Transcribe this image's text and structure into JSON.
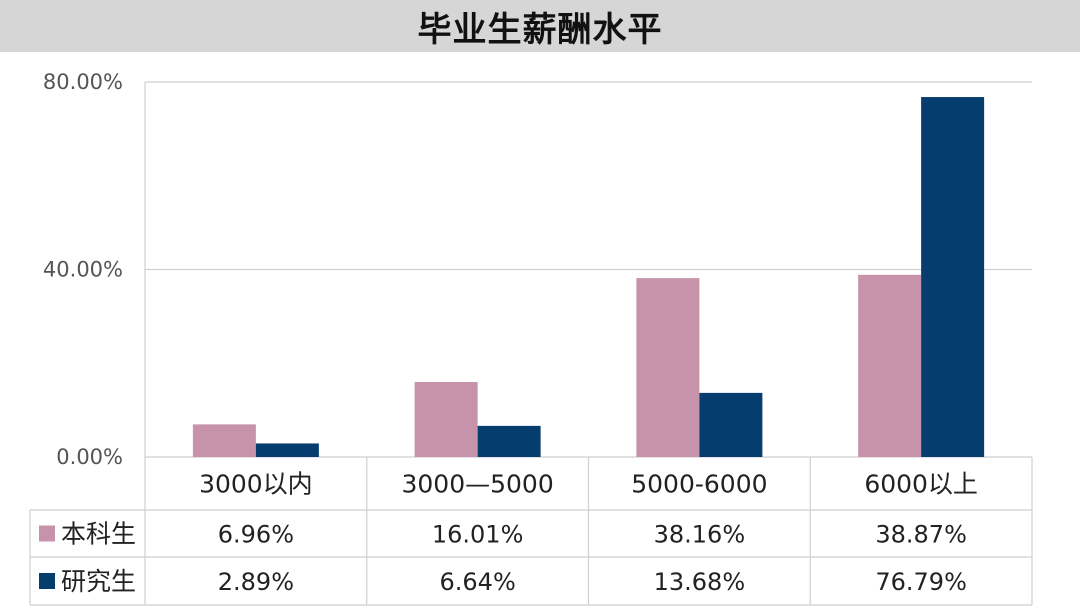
{
  "title": "毕业生薪酬水平",
  "chart_data": {
    "type": "bar",
    "title": "毕业生薪酬水平",
    "categories": [
      "3000以内",
      "3000—5000",
      "5000-6000",
      "6000以上"
    ],
    "series": [
      {
        "name": "本科生",
        "values": [
          6.96,
          16.01,
          38.16,
          38.87
        ],
        "labels": [
          "6.96%",
          "16.01%",
          "38.16%",
          "38.87%"
        ],
        "color": "#c793aa"
      },
      {
        "name": "研究生",
        "values": [
          2.89,
          6.64,
          13.68,
          76.79
        ],
        "labels": [
          "2.89%",
          "6.64%",
          "13.68%",
          "76.79%"
        ],
        "color": "#053e6e"
      }
    ],
    "ylim": [
      0,
      80
    ],
    "yticks": [
      {
        "value": 0,
        "label": "0.00%"
      },
      {
        "value": 40,
        "label": "40.00%"
      },
      {
        "value": 80,
        "label": "80.00%"
      }
    ],
    "grid": true,
    "legend": "data-table",
    "xlabel": "",
    "ylabel": ""
  }
}
